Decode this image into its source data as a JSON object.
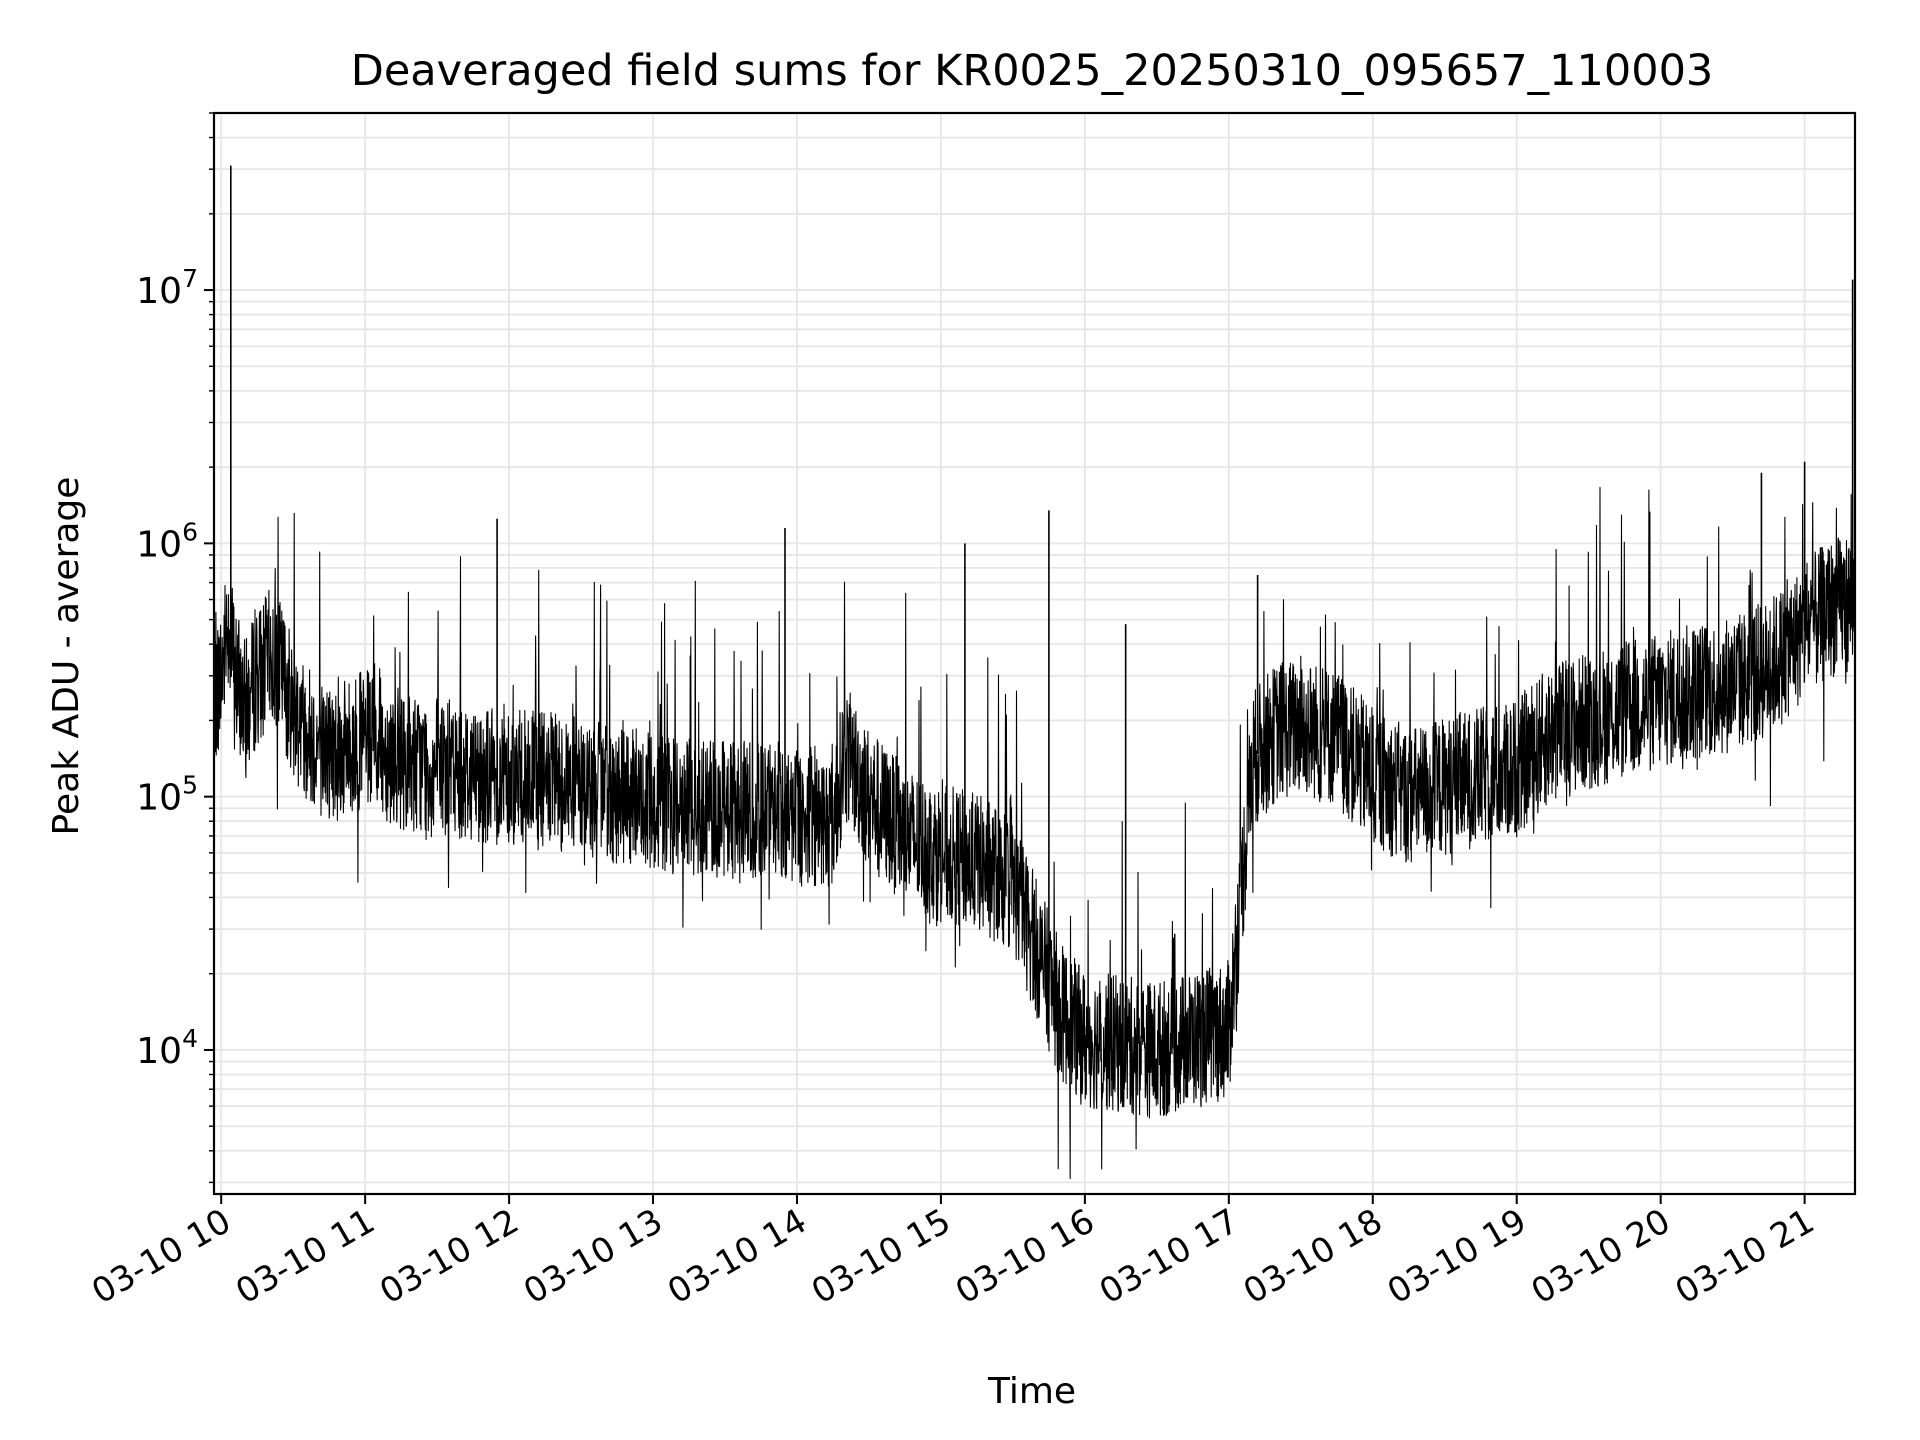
{
  "chart_data": {
    "type": "line",
    "title": "Deaveraged field sums for KR0025_20250310_095657_110003",
    "xlabel": "Time",
    "ylabel": "Peak ADU - average",
    "yscale": "log",
    "xlim": [
      "2025-03-10 09:57",
      "2025-03-10 21:21"
    ],
    "ylim": [
      2700,
      50000000
    ],
    "grid": true,
    "x_ticks": [
      {
        "time": "2025-03-10 10:00",
        "label": "03-10 10"
      },
      {
        "time": "2025-03-10 11:00",
        "label": "03-10 11"
      },
      {
        "time": "2025-03-10 12:00",
        "label": "03-10 12"
      },
      {
        "time": "2025-03-10 13:00",
        "label": "03-10 13"
      },
      {
        "time": "2025-03-10 14:00",
        "label": "03-10 14"
      },
      {
        "time": "2025-03-10 15:00",
        "label": "03-10 15"
      },
      {
        "time": "2025-03-10 16:00",
        "label": "03-10 16"
      },
      {
        "time": "2025-03-10 17:00",
        "label": "03-10 17"
      },
      {
        "time": "2025-03-10 18:00",
        "label": "03-10 18"
      },
      {
        "time": "2025-03-10 19:00",
        "label": "03-10 19"
      },
      {
        "time": "2025-03-10 20:00",
        "label": "03-10 20"
      },
      {
        "time": "2025-03-10 21:00",
        "label": "03-10 21"
      }
    ],
    "y_ticks": [
      {
        "value": 10000,
        "base": "10",
        "exp": "4"
      },
      {
        "value": 100000,
        "base": "10",
        "exp": "5"
      },
      {
        "value": 1000000,
        "base": "10",
        "exp": "6"
      },
      {
        "value": 10000000,
        "base": "10",
        "exp": "7"
      }
    ],
    "line_color": "#000000",
    "grid_color": "#e6e6e6",
    "series": [
      {
        "points": [
          [
            "2025-03-10 09:57",
            250000
          ],
          [
            "2025-03-10 10:00",
            300000
          ],
          [
            "2025-03-10 10:03",
            500000
          ],
          [
            "2025-03-10 10:06",
            300000
          ],
          [
            "2025-03-10 10:10",
            220000
          ],
          [
            "2025-03-10 10:15",
            300000
          ],
          [
            "2025-03-10 10:20",
            350000
          ],
          [
            "2025-03-10 10:25",
            320000
          ],
          [
            "2025-03-10 10:30",
            220000
          ],
          [
            "2025-03-10 10:40",
            160000
          ],
          [
            "2025-03-10 10:50",
            150000
          ],
          [
            "2025-03-10 11:00",
            170000
          ],
          [
            "2025-03-10 11:15",
            140000
          ],
          [
            "2025-03-10 11:30",
            130000
          ],
          [
            "2025-03-10 11:45",
            125000
          ],
          [
            "2025-03-10 12:00",
            120000
          ],
          [
            "2025-03-10 12:15",
            115000
          ],
          [
            "2025-03-10 12:30",
            110000
          ],
          [
            "2025-03-10 12:45",
            100000
          ],
          [
            "2025-03-10 13:00",
            95000
          ],
          [
            "2025-03-10 13:15",
            92000
          ],
          [
            "2025-03-10 13:30",
            90000
          ],
          [
            "2025-03-10 13:45",
            88000
          ],
          [
            "2025-03-10 14:00",
            85000
          ],
          [
            "2025-03-10 14:15",
            80000
          ],
          [
            "2025-03-10 14:20",
            150000
          ],
          [
            "2025-03-10 14:30",
            100000
          ],
          [
            "2025-03-10 14:45",
            70000
          ],
          [
            "2025-03-10 15:00",
            60000
          ],
          [
            "2025-03-10 15:15",
            55000
          ],
          [
            "2025-03-10 15:30",
            45000
          ],
          [
            "2025-03-10 15:40",
            25000
          ],
          [
            "2025-03-10 15:50",
            14000
          ],
          [
            "2025-03-10 16:00",
            11000
          ],
          [
            "2025-03-10 16:15",
            10500
          ],
          [
            "2025-03-10 16:30",
            10000
          ],
          [
            "2025-03-10 16:45",
            11000
          ],
          [
            "2025-03-10 17:00",
            12000
          ],
          [
            "2025-03-10 17:05",
            40000
          ],
          [
            "2025-03-10 17:10",
            140000
          ],
          [
            "2025-03-10 17:20",
            180000
          ],
          [
            "2025-03-10 17:30",
            190000
          ],
          [
            "2025-03-10 17:45",
            170000
          ],
          [
            "2025-03-10 18:00",
            120000
          ],
          [
            "2025-03-10 18:15",
            100000
          ],
          [
            "2025-03-10 18:30",
            110000
          ],
          [
            "2025-03-10 18:45",
            120000
          ],
          [
            "2025-03-10 19:00",
            130000
          ],
          [
            "2025-03-10 19:15",
            180000
          ],
          [
            "2025-03-10 19:30",
            200000
          ],
          [
            "2025-03-10 19:45",
            220000
          ],
          [
            "2025-03-10 20:00",
            240000
          ],
          [
            "2025-03-10 20:15",
            260000
          ],
          [
            "2025-03-10 20:30",
            280000
          ],
          [
            "2025-03-10 20:45",
            320000
          ],
          [
            "2025-03-10 21:00",
            450000
          ],
          [
            "2025-03-10 21:10",
            550000
          ],
          [
            "2025-03-10 21:21",
            600000
          ]
        ],
        "spikes": [
          [
            "2025-03-10 10:04",
            31000000
          ],
          [
            "2025-03-10 11:55",
            1250000
          ],
          [
            "2025-03-10 13:55",
            1150000
          ],
          [
            "2025-03-10 15:10",
            1000000
          ],
          [
            "2025-03-10 15:45",
            1350000
          ],
          [
            "2025-03-10 16:17",
            480000
          ],
          [
            "2025-03-10 17:12",
            750000
          ],
          [
            "2025-03-10 20:42",
            1900000
          ],
          [
            "2025-03-10 21:00",
            2100000
          ],
          [
            "2025-03-10 21:20",
            11000000
          ]
        ]
      }
    ]
  }
}
